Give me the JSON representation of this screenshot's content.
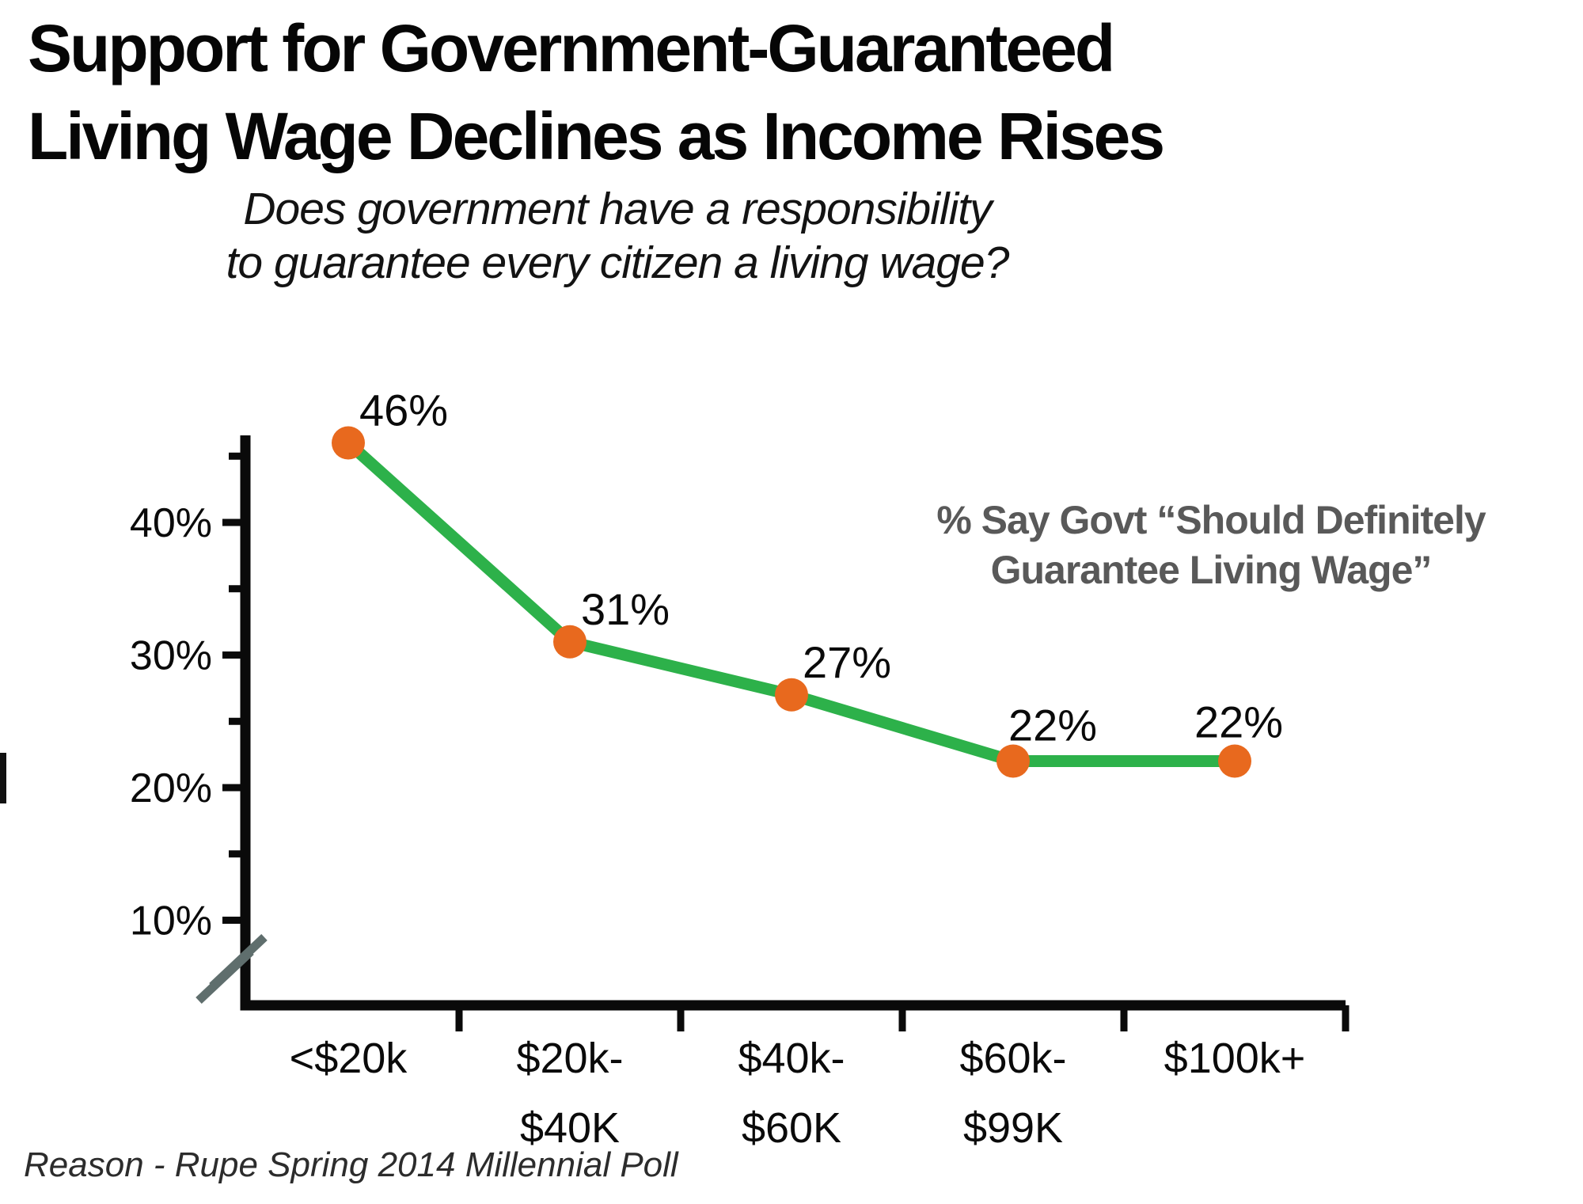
{
  "chart_data": {
    "type": "line",
    "title": "Support for Government-Guaranteed Living Wage Declines as Income Rises",
    "title_lines": [
      "Support for Government-Guaranteed",
      "Living Wage Declines as Income Rises"
    ],
    "subtitle_lines": [
      "Does government have a responsibility",
      "to guarantee every citizen a living wage?"
    ],
    "annotation_lines": [
      "% Say Govt “Should Definitely",
      "Guarantee Living Wage”"
    ],
    "categories": [
      {
        "lines": [
          "<$20k"
        ]
      },
      {
        "lines": [
          "$20k-",
          "$40K"
        ]
      },
      {
        "lines": [
          "$40k-",
          "$60K"
        ]
      },
      {
        "lines": [
          "$60k-",
          "$99K"
        ]
      },
      {
        "lines": [
          "$100k+"
        ]
      }
    ],
    "values": [
      46,
      31,
      27,
      22,
      22
    ],
    "data_labels": [
      "46%",
      "31%",
      "27%",
      "22%",
      "22%"
    ],
    "y_axis": {
      "major": [
        {
          "value": 40,
          "label": "40%"
        },
        {
          "value": 30,
          "label": "30%"
        },
        {
          "value": 20,
          "label": "20%"
        },
        {
          "value": 10,
          "label": "10%"
        }
      ],
      "minor_values": [
        45,
        35,
        25,
        15
      ],
      "axis_break": true
    },
    "ylim": [
      10,
      47
    ],
    "grid": false,
    "legend_position": "none",
    "source": "Reason - Rupe Spring 2014 Millennial Poll",
    "colors": {
      "line": "#2db14a",
      "marker": "#e8691e",
      "axis": "#0a0a0a",
      "annotation": "#595959",
      "axis_break": "#5f6e6d",
      "text": "#0a0a0a"
    }
  }
}
